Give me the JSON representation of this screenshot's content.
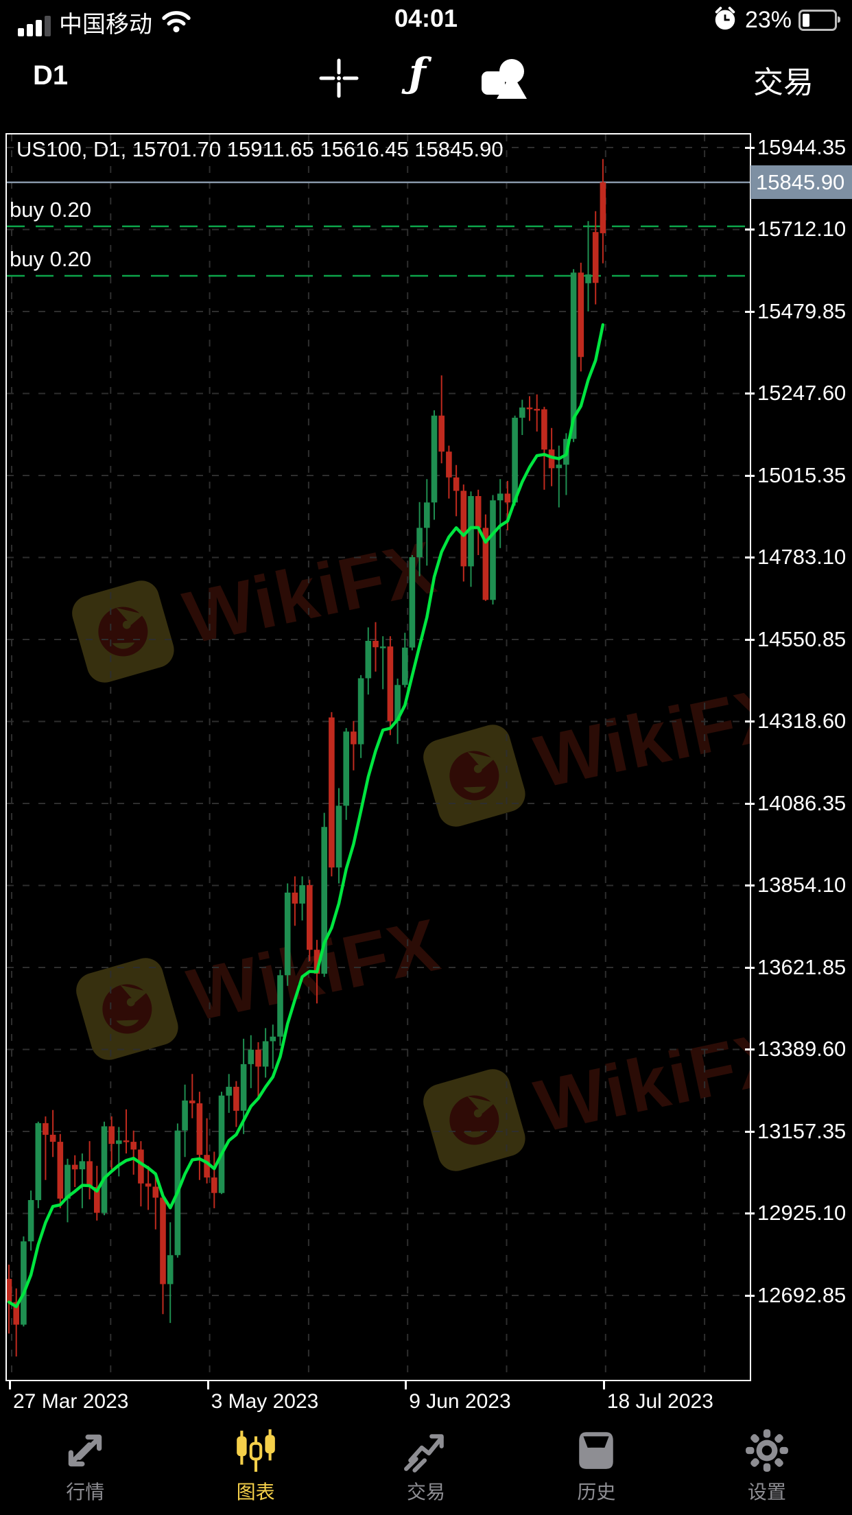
{
  "status_bar": {
    "carrier": "中国移动",
    "time": "04:01",
    "battery": "23%",
    "icons": [
      "cellular-signal-icon",
      "wifi-icon",
      "alarm-clock-icon",
      "battery-icon"
    ]
  },
  "toolbar": {
    "timeframe": "D1",
    "trade": "交易",
    "function_glyph": "ƒ",
    "icons": [
      "crosshair-icon",
      "function-icon",
      "objects-icon"
    ]
  },
  "chart": {
    "header": "US100, D1, 15701.70 15911.65 15616.45 15845.90",
    "current_price": "15845.90",
    "watermark": "WikiFX",
    "orders": [
      {
        "label": "buy 0.20"
      },
      {
        "label": "buy 0.20"
      }
    ],
    "price_axis": [
      "15944.35",
      "15712.10",
      "15479.85",
      "15247.60",
      "15015.35",
      "14783.10",
      "14550.85",
      "14318.60",
      "14086.35",
      "13854.10",
      "13621.85",
      "13389.60",
      "13157.35",
      "12925.10",
      "12692.85"
    ],
    "date_axis": [
      "27 Mar 2023",
      "3 May 2023",
      "9 Jun 2023",
      "18 Jul 2023"
    ]
  },
  "chart_data": {
    "type": "candlestick",
    "symbol": "US100",
    "timeframe": "D1",
    "title": "US100, D1, 15701.70 15911.65 15616.45 15845.90",
    "ohlc_latest": {
      "open": 15701.7,
      "high": 15911.65,
      "low": 15616.45,
      "close": 15845.9
    },
    "current_price": 15845.9,
    "ylim": [
      12455,
      15977
    ],
    "y_axis_ticks": [
      15944.35,
      15712.1,
      15479.85,
      15247.6,
      15015.35,
      14783.1,
      14550.85,
      14318.6,
      14086.35,
      13854.1,
      13621.85,
      13389.6,
      13157.35,
      12925.1,
      12692.85
    ],
    "x_axis_labels": [
      "27 Mar 2023",
      "3 May 2023",
      "9 Jun 2023",
      "18 Jul 2023"
    ],
    "order_lines": [
      {
        "label": "buy 0.20",
        "price": 15721.0
      },
      {
        "label": "buy 0.20",
        "price": 15581.0
      }
    ],
    "ma": {
      "type": "ema",
      "period": 9,
      "color": "#00e640"
    },
    "colors": {
      "up": "#1f8f51",
      "down": "#c02a1e",
      "grid": "#2e2e2e",
      "order_line": "#0da44a",
      "price_line": "#8696a8",
      "tag_bg": "#7e90a3"
    },
    "grid": true,
    "dates": [
      "2023-03-27",
      "2023-03-28",
      "2023-03-29",
      "2023-03-30",
      "2023-03-31",
      "2023-04-03",
      "2023-04-04",
      "2023-04-05",
      "2023-04-06",
      "2023-04-07",
      "2023-04-10",
      "2023-04-11",
      "2023-04-12",
      "2023-04-13",
      "2023-04-14",
      "2023-04-17",
      "2023-04-18",
      "2023-04-19",
      "2023-04-20",
      "2023-04-21",
      "2023-04-24",
      "2023-04-25",
      "2023-04-26",
      "2023-04-27",
      "2023-04-28",
      "2023-05-01",
      "2023-05-02",
      "2023-05-03",
      "2023-05-04",
      "2023-05-05",
      "2023-05-08",
      "2023-05-09",
      "2023-05-10",
      "2023-05-11",
      "2023-05-12",
      "2023-05-15",
      "2023-05-16",
      "2023-05-17",
      "2023-05-18",
      "2023-05-19",
      "2023-05-22",
      "2023-05-23",
      "2023-05-24",
      "2023-05-25",
      "2023-05-26",
      "2023-05-29",
      "2023-05-30",
      "2023-05-31",
      "2023-06-01",
      "2023-06-02",
      "2023-06-05",
      "2023-06-06",
      "2023-06-07",
      "2023-06-08",
      "2023-06-09",
      "2023-06-12",
      "2023-06-13",
      "2023-06-14",
      "2023-06-15",
      "2023-06-16",
      "2023-06-19",
      "2023-06-20",
      "2023-06-21",
      "2023-06-22",
      "2023-06-23",
      "2023-06-26",
      "2023-06-27",
      "2023-06-28",
      "2023-06-29",
      "2023-06-30",
      "2023-07-03",
      "2023-07-04",
      "2023-07-05",
      "2023-07-06",
      "2023-07-07",
      "2023-07-10",
      "2023-07-11",
      "2023-07-12",
      "2023-07-13",
      "2023-07-14",
      "2023-07-17",
      "2023-07-18"
    ],
    "candles": [
      [
        12740,
        12780,
        12585,
        12674
      ],
      [
        12674,
        12713,
        12520,
        12610
      ],
      [
        12610,
        12860,
        12605,
        12846
      ],
      [
        12846,
        12990,
        12820,
        12963
      ],
      [
        12963,
        13185,
        12940,
        13181
      ],
      [
        13181,
        13200,
        13020,
        13148
      ],
      [
        13148,
        13218,
        13085,
        13128
      ],
      [
        13128,
        13150,
        12940,
        12967
      ],
      [
        12967,
        13080,
        12900,
        13063
      ],
      [
        13063,
        13090,
        13000,
        13050
      ],
      [
        13050,
        13095,
        12940,
        13073
      ],
      [
        13073,
        13130,
        12965,
        13000
      ],
      [
        13000,
        13060,
        12905,
        12927
      ],
      [
        12927,
        13185,
        12920,
        13172
      ],
      [
        13172,
        13200,
        13050,
        13122
      ],
      [
        13122,
        13170,
        13030,
        13132
      ],
      [
        13132,
        13220,
        13095,
        13128
      ],
      [
        13128,
        13160,
        13035,
        13106
      ],
      [
        13106,
        13130,
        12945,
        13010
      ],
      [
        13010,
        13060,
        12935,
        13001
      ],
      [
        13001,
        13040,
        12880,
        12970
      ],
      [
        12970,
        12985,
        12640,
        12725
      ],
      [
        12725,
        12900,
        12615,
        12807
      ],
      [
        12807,
        13180,
        12800,
        13160
      ],
      [
        13160,
        13290,
        13085,
        13245
      ],
      [
        13245,
        13320,
        13195,
        13237
      ],
      [
        13237,
        13270,
        13020,
        13091
      ],
      [
        13091,
        13195,
        13010,
        13027
      ],
      [
        13027,
        13100,
        12940,
        12983
      ],
      [
        12983,
        13270,
        12980,
        13259
      ],
      [
        13259,
        13320,
        13210,
        13284
      ],
      [
        13284,
        13300,
        13170,
        13216
      ],
      [
        13216,
        13420,
        13150,
        13348
      ],
      [
        13348,
        13430,
        13280,
        13389
      ],
      [
        13389,
        13410,
        13250,
        13341
      ],
      [
        13341,
        13450,
        13310,
        13413
      ],
      [
        13413,
        13460,
        13335,
        13426
      ],
      [
        13426,
        13615,
        13400,
        13600
      ],
      [
        13600,
        13860,
        13570,
        13834
      ],
      [
        13834,
        13880,
        13740,
        13803
      ],
      [
        13803,
        13880,
        13755,
        13855
      ],
      [
        13855,
        13870,
        13640,
        13672
      ],
      [
        13672,
        13700,
        13520,
        13604
      ],
      [
        13604,
        14060,
        13595,
        14020
      ],
      [
        14330,
        14345,
        13880,
        13905
      ],
      [
        13905,
        14130,
        13860,
        14080
      ],
      [
        14080,
        14300,
        14040,
        14290
      ],
      [
        14290,
        14320,
        14180,
        14254
      ],
      [
        14254,
        14450,
        14215,
        14441
      ],
      [
        14441,
        14585,
        14395,
        14547
      ],
      [
        14547,
        14600,
        14460,
        14529
      ],
      [
        14529,
        14560,
        14410,
        14531
      ],
      [
        14531,
        14560,
        14280,
        14320
      ],
      [
        14320,
        14440,
        14255,
        14422
      ],
      [
        14422,
        14570,
        14415,
        14528
      ],
      [
        14528,
        14790,
        14520,
        14784
      ],
      [
        14784,
        14940,
        14730,
        14867
      ],
      [
        14867,
        15005,
        14760,
        14939
      ],
      [
        14939,
        15200,
        14890,
        15185
      ],
      [
        15185,
        15299,
        15050,
        15083
      ],
      [
        15083,
        15100,
        14950,
        15010
      ],
      [
        15010,
        15045,
        14900,
        14972
      ],
      [
        14972,
        14990,
        14715,
        14758
      ],
      [
        14758,
        14970,
        14700,
        14957
      ],
      [
        14957,
        14975,
        14790,
        14867
      ],
      [
        14867,
        14905,
        14660,
        14663
      ],
      [
        14663,
        14960,
        14650,
        14945
      ],
      [
        14945,
        15005,
        14810,
        14964
      ],
      [
        14964,
        15000,
        14860,
        14939
      ],
      [
        14939,
        15185,
        14930,
        15179
      ],
      [
        15179,
        15230,
        15130,
        15208
      ],
      [
        15208,
        15240,
        15170,
        15204
      ],
      [
        15204,
        15245,
        15140,
        15203
      ],
      [
        15203,
        15210,
        14975,
        15089
      ],
      [
        15089,
        15150,
        14985,
        15036
      ],
      [
        15036,
        15100,
        14925,
        15046
      ],
      [
        15046,
        15135,
        14960,
        15119
      ],
      [
        15119,
        15600,
        15110,
        15590
      ],
      [
        15590,
        15618,
        15310,
        15351
      ],
      [
        15560,
        15736,
        15480,
        15585
      ],
      [
        15705,
        15764,
        15500,
        15561
      ],
      [
        15701.7,
        15911.65,
        15616.45,
        15845.9,
        "d"
      ]
    ]
  },
  "tab_bar": {
    "items": [
      {
        "label": "行情",
        "icon": "quotes-icon",
        "active": false
      },
      {
        "label": "图表",
        "icon": "charts-icon",
        "active": true
      },
      {
        "label": "交易",
        "icon": "trade-icon",
        "active": false
      },
      {
        "label": "历史",
        "icon": "history-icon",
        "active": false
      },
      {
        "label": "设置",
        "icon": "settings-icon",
        "active": false
      }
    ]
  }
}
